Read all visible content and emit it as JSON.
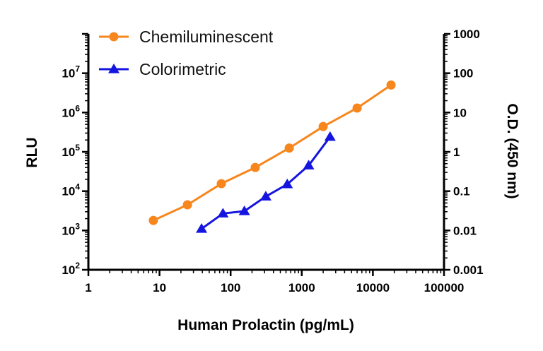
{
  "chart_data": {
    "type": "line",
    "title": "",
    "xlabel": "Human Prolactin (pg/mL)",
    "ylabel": "RLU",
    "y2label": "O.D. (450 nm)",
    "x_scale": "log",
    "y_scale": "log",
    "y2_scale": "log",
    "xlim": [
      1,
      100000
    ],
    "ylim": [
      100,
      100000000
    ],
    "y2lim": [
      0.001,
      1000
    ],
    "grid": false,
    "legend_position": "top-left",
    "x_ticks": [
      "1",
      "10",
      "100",
      "1000",
      "10000",
      "100000"
    ],
    "y_ticks": [
      {
        "base": "10",
        "exp": "2"
      },
      {
        "base": "10",
        "exp": "3"
      },
      {
        "base": "10",
        "exp": "4"
      },
      {
        "base": "10",
        "exp": "5"
      },
      {
        "base": "10",
        "exp": "6"
      },
      {
        "base": "10",
        "exp": "7"
      }
    ],
    "y2_ticks": [
      "0.001",
      "0.01",
      "0.1",
      "1",
      "10",
      "100",
      "1000"
    ],
    "series": [
      {
        "name": "Chemiluminescent",
        "axis": "left",
        "color": "#F7861C",
        "marker": "circle",
        "x": [
          8.2,
          24.7,
          74,
          222,
          667,
          2000,
          6000,
          18000
        ],
        "y": [
          1800,
          4500,
          15500,
          40000,
          125000,
          440000,
          1300000,
          5000000
        ]
      },
      {
        "name": "Colorimetric",
        "axis": "right",
        "color": "#1515E0",
        "marker": "triangle",
        "x": [
          39,
          78,
          156,
          312,
          625,
          1250,
          2500
        ],
        "y": [
          0.011,
          0.027,
          0.031,
          0.073,
          0.15,
          0.45,
          2.4
        ]
      }
    ]
  }
}
